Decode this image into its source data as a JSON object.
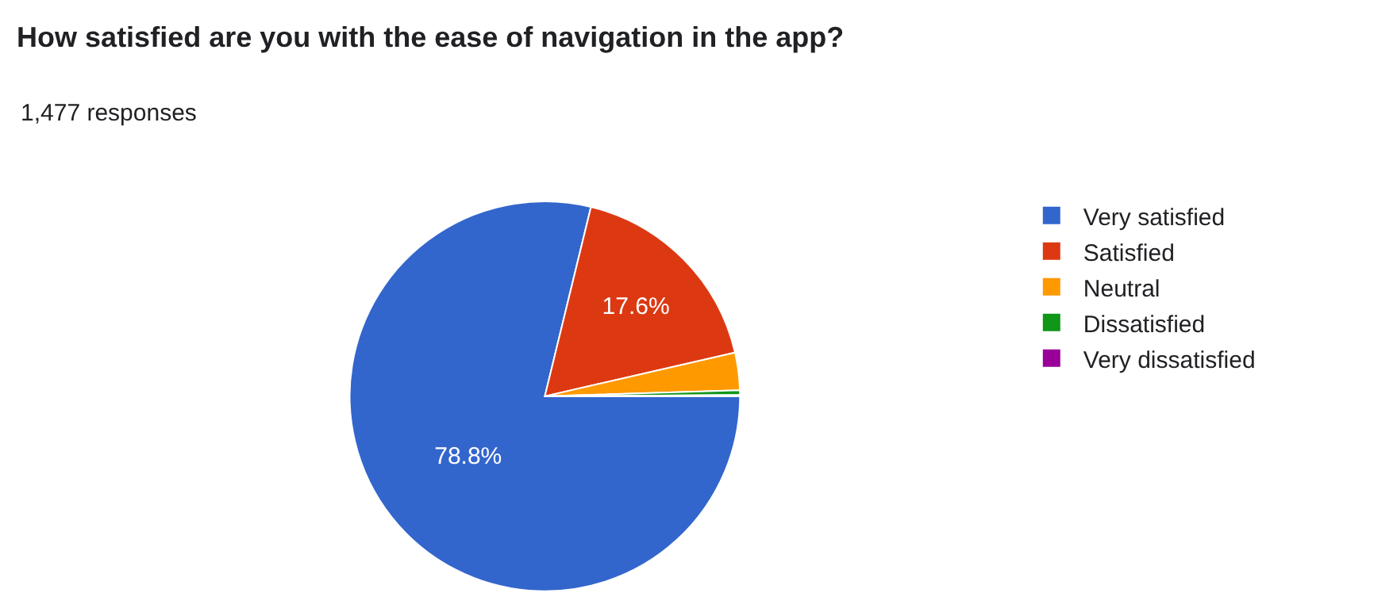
{
  "chart_data": {
    "type": "pie",
    "title": "How satisfied are you with the ease of navigation in the app?",
    "subtitle": "1,477 responses",
    "categories": [
      "Very satisfied",
      "Satisfied",
      "Neutral",
      "Dissatisfied",
      "Very dissatisfied"
    ],
    "values": [
      78.8,
      17.6,
      3.1,
      0.4,
      0.1
    ],
    "colors": [
      "#3366cc",
      "#dc3912",
      "#ff9900",
      "#109618",
      "#990099"
    ],
    "value_labels": [
      "78.8%",
      "17.6%",
      null,
      null,
      null
    ],
    "legend": "right"
  }
}
